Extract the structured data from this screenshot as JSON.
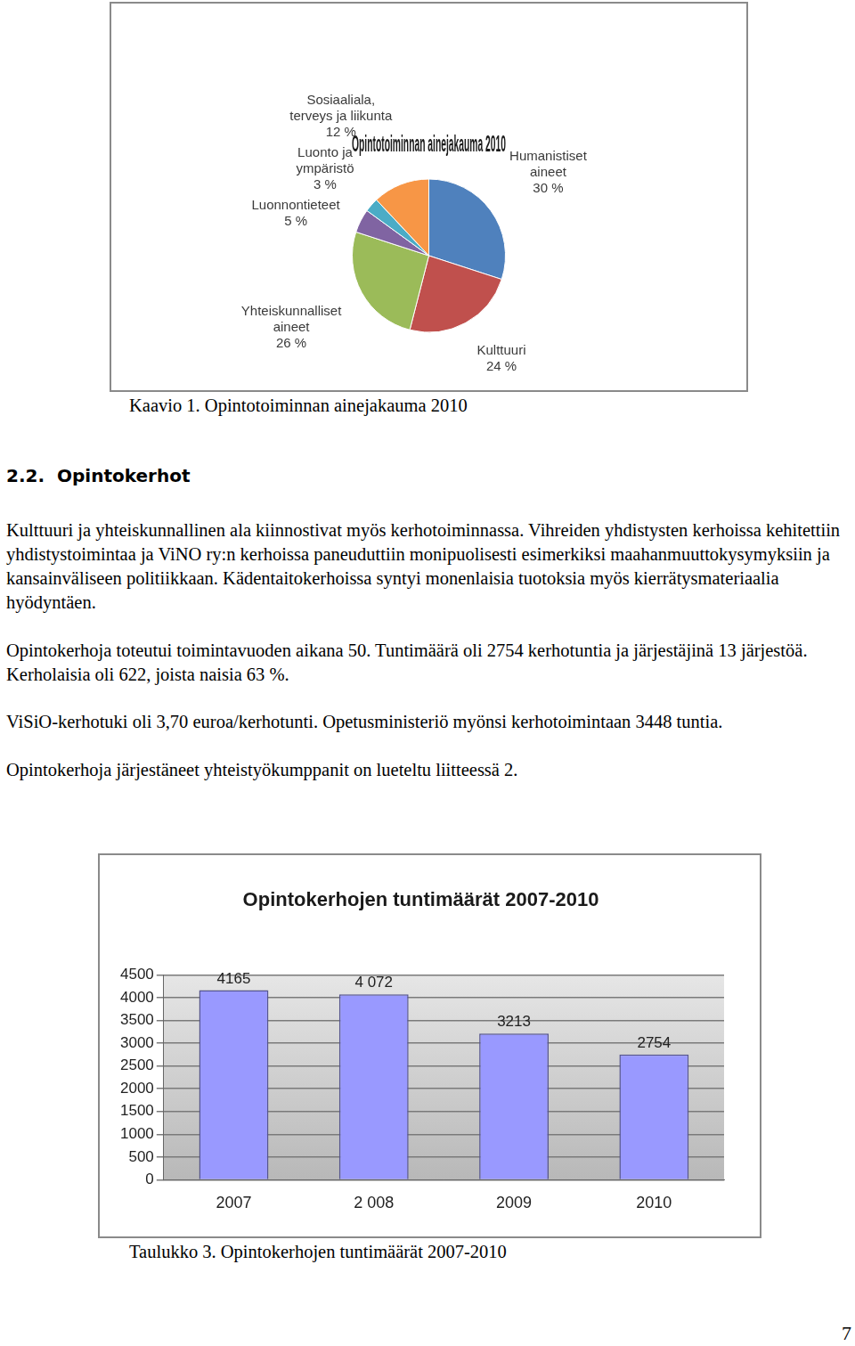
{
  "chart_data": [
    {
      "type": "pie",
      "title": "Opintotoiminnan ainejakauma 2010",
      "categories": [
        "Humanistiset\naineet",
        "Kulttuuri",
        "Yhteiskunnalliset\naineet",
        "Luonnontieteet",
        "Luonto ja\nympäristö",
        "Sosiaaliala,\nterveys ja liikunta"
      ],
      "values": [
        30,
        24,
        26,
        5,
        3,
        12
      ],
      "value_labels": [
        "30 %",
        "24 %",
        "26 %",
        "5 %",
        "3 %",
        "12 %"
      ],
      "colors": [
        "#4f81bd",
        "#c0504d",
        "#9bbb59",
        "#8064a2",
        "#4bacc6",
        "#f79646"
      ],
      "data_labels": true
    },
    {
      "type": "bar",
      "title": "Opintokerhojen tuntimäärät 2007-2010",
      "categories": [
        "2007",
        "2 008",
        "2009",
        "2010"
      ],
      "values": [
        4165,
        4072,
        3213,
        2754
      ],
      "value_labels": [
        "4165",
        "4 072",
        "3213",
        "2754"
      ],
      "color": "#9999ff",
      "ylim": [
        0,
        4500
      ],
      "yticks": [
        0,
        500,
        1000,
        1500,
        2000,
        2500,
        3000,
        3500,
        4000,
        4500
      ],
      "grid": true,
      "data_labels": true
    }
  ],
  "document": {
    "captions": [
      "Kaavio 1. Opintotoiminnan ainejakauma 2010",
      "Taulukko 3. Opintokerhojen tuntimäärät 2007-2010"
    ],
    "section": {
      "number": "2.2.",
      "title": "Opintokerhot"
    },
    "paragraphs": [
      "Kulttuuri ja yhteiskunnallinen ala kiinnostivat myös kerhotoiminnassa. Vihreiden yhdistysten kerhoissa kehitettiin yhdistystoimintaa ja ViNO ry:n kerhoissa paneuduttiin monipuolisesti esimerkiksi maahanmuuttokysymyksiin ja kansainväliseen politiikkaan. Kädentaitokerhoissa syntyi monenlaisia tuotoksia myös kierrätysmateriaalia hyödyntäen.",
      "Opintokerhoja toteutui toimintavuoden aikana 50. Tuntimäärä oli 2754 kerhotuntia ja järjestäjinä 13 järjestöä. Kerholaisia oli 622, joista naisia 63 %.",
      "ViSiO-kerhotuki oli 3,70 euroa/kerhotunti. Opetusministeriö myönsi kerhotoimintaan 3448 tuntia.",
      "Opintokerhoja järjestäneet yhteistyökumppanit on lueteltu liitteessä 2."
    ],
    "page_number": 7
  }
}
